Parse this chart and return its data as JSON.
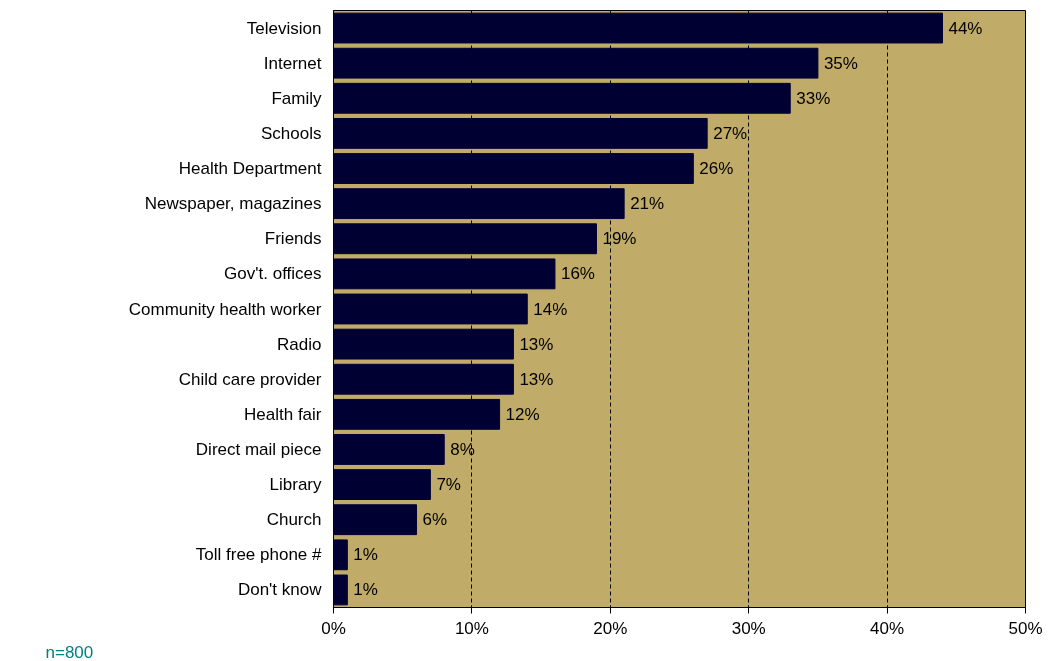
{
  "chart_data": {
    "type": "bar",
    "orientation": "horizontal",
    "categories": [
      "Television",
      "Internet",
      "Family",
      "Schools",
      "Health Department",
      "Newspaper, magazines",
      "Friends",
      "Gov't. offices",
      "Community health worker",
      "Radio",
      "Child care provider",
      "Health fair",
      "Direct mail piece",
      "Library",
      "Church",
      "Toll free phone #",
      "Don't know"
    ],
    "values": [
      44,
      35,
      33,
      27,
      26,
      21,
      19,
      16,
      14,
      13,
      13,
      12,
      8,
      7,
      6,
      1,
      1
    ],
    "value_labels": [
      "44%",
      "35%",
      "33%",
      "27%",
      "26%",
      "21%",
      "19%",
      "16%",
      "14%",
      "13%",
      "13%",
      "12%",
      "8%",
      "7%",
      "6%",
      "1%",
      "1%"
    ],
    "color": "#000033",
    "xlim": [
      0,
      50
    ],
    "xticks": [
      {
        "value": 0,
        "label": "0%"
      },
      {
        "value": 10,
        "label": "10%"
      },
      {
        "value": 20,
        "label": "20%"
      },
      {
        "value": 30,
        "label": "30%"
      },
      {
        "value": 40,
        "label": "40%"
      },
      {
        "value": 50,
        "label": "50%"
      }
    ],
    "grid": "x",
    "annotations": [
      "n=800"
    ]
  }
}
